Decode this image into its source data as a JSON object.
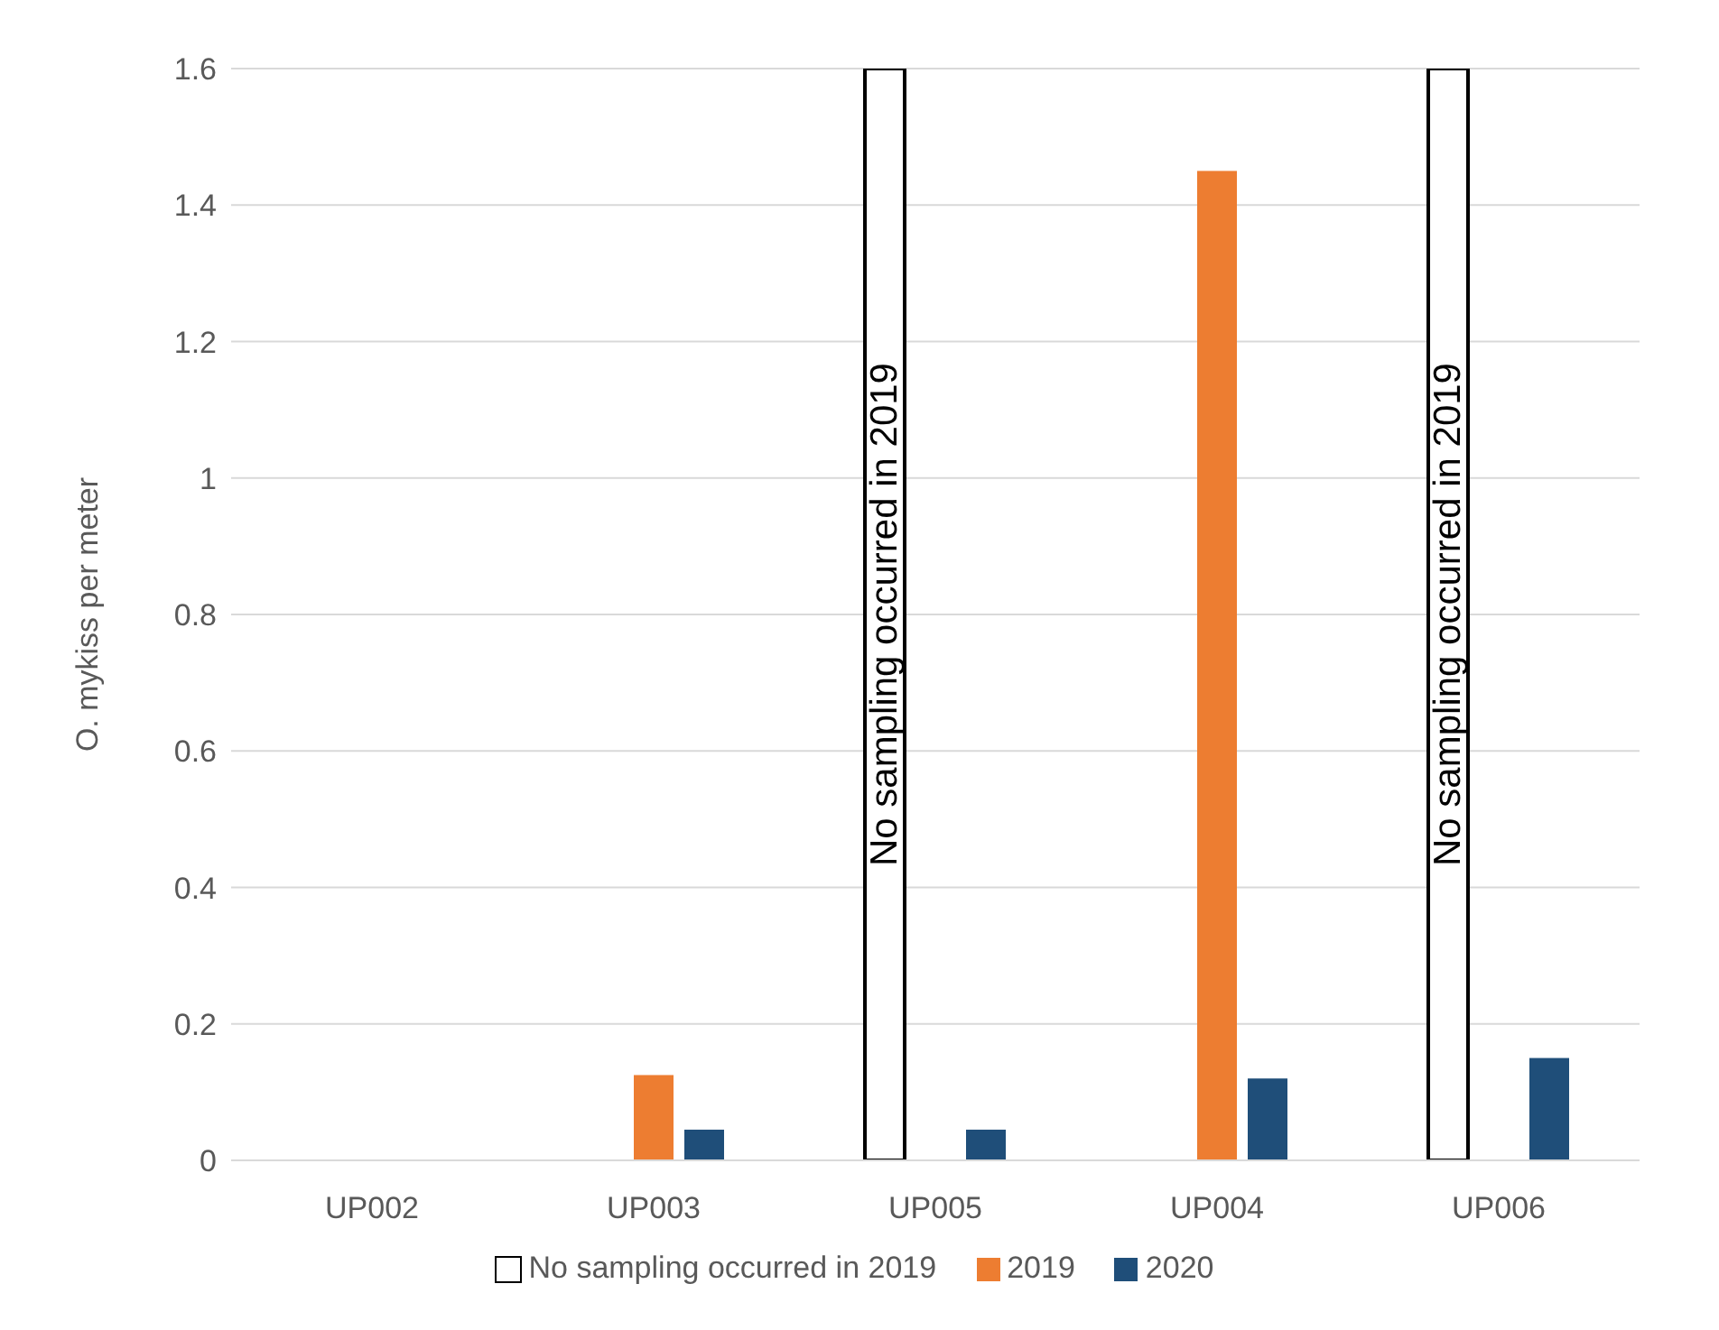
{
  "chart_data": {
    "type": "bar",
    "ylabel": "O. mykiss per meter",
    "categories": [
      "UP002",
      "UP003",
      "UP005",
      "UP004",
      "UP006"
    ],
    "series": [
      {
        "name": "No sampling occurred in 2019",
        "color": "#ffffff",
        "values": [
          null,
          null,
          1.6,
          null,
          1.6
        ]
      },
      {
        "name": "2019",
        "color": "#ed7d31",
        "values": [
          null,
          0.125,
          null,
          1.45,
          null
        ]
      },
      {
        "name": "2020",
        "color": "#1f4e79",
        "values": [
          null,
          0.045,
          0.045,
          0.12,
          0.15
        ]
      }
    ],
    "ylim": [
      0,
      1.6
    ],
    "yticks": [
      0,
      0.2,
      0.4,
      0.6,
      0.8,
      1,
      1.2,
      1.4,
      1.6
    ],
    "grid": "y",
    "legend": "bottom",
    "annotations": [
      "No sampling occurred in 2019",
      "No sampling occurred in 2019"
    ]
  }
}
